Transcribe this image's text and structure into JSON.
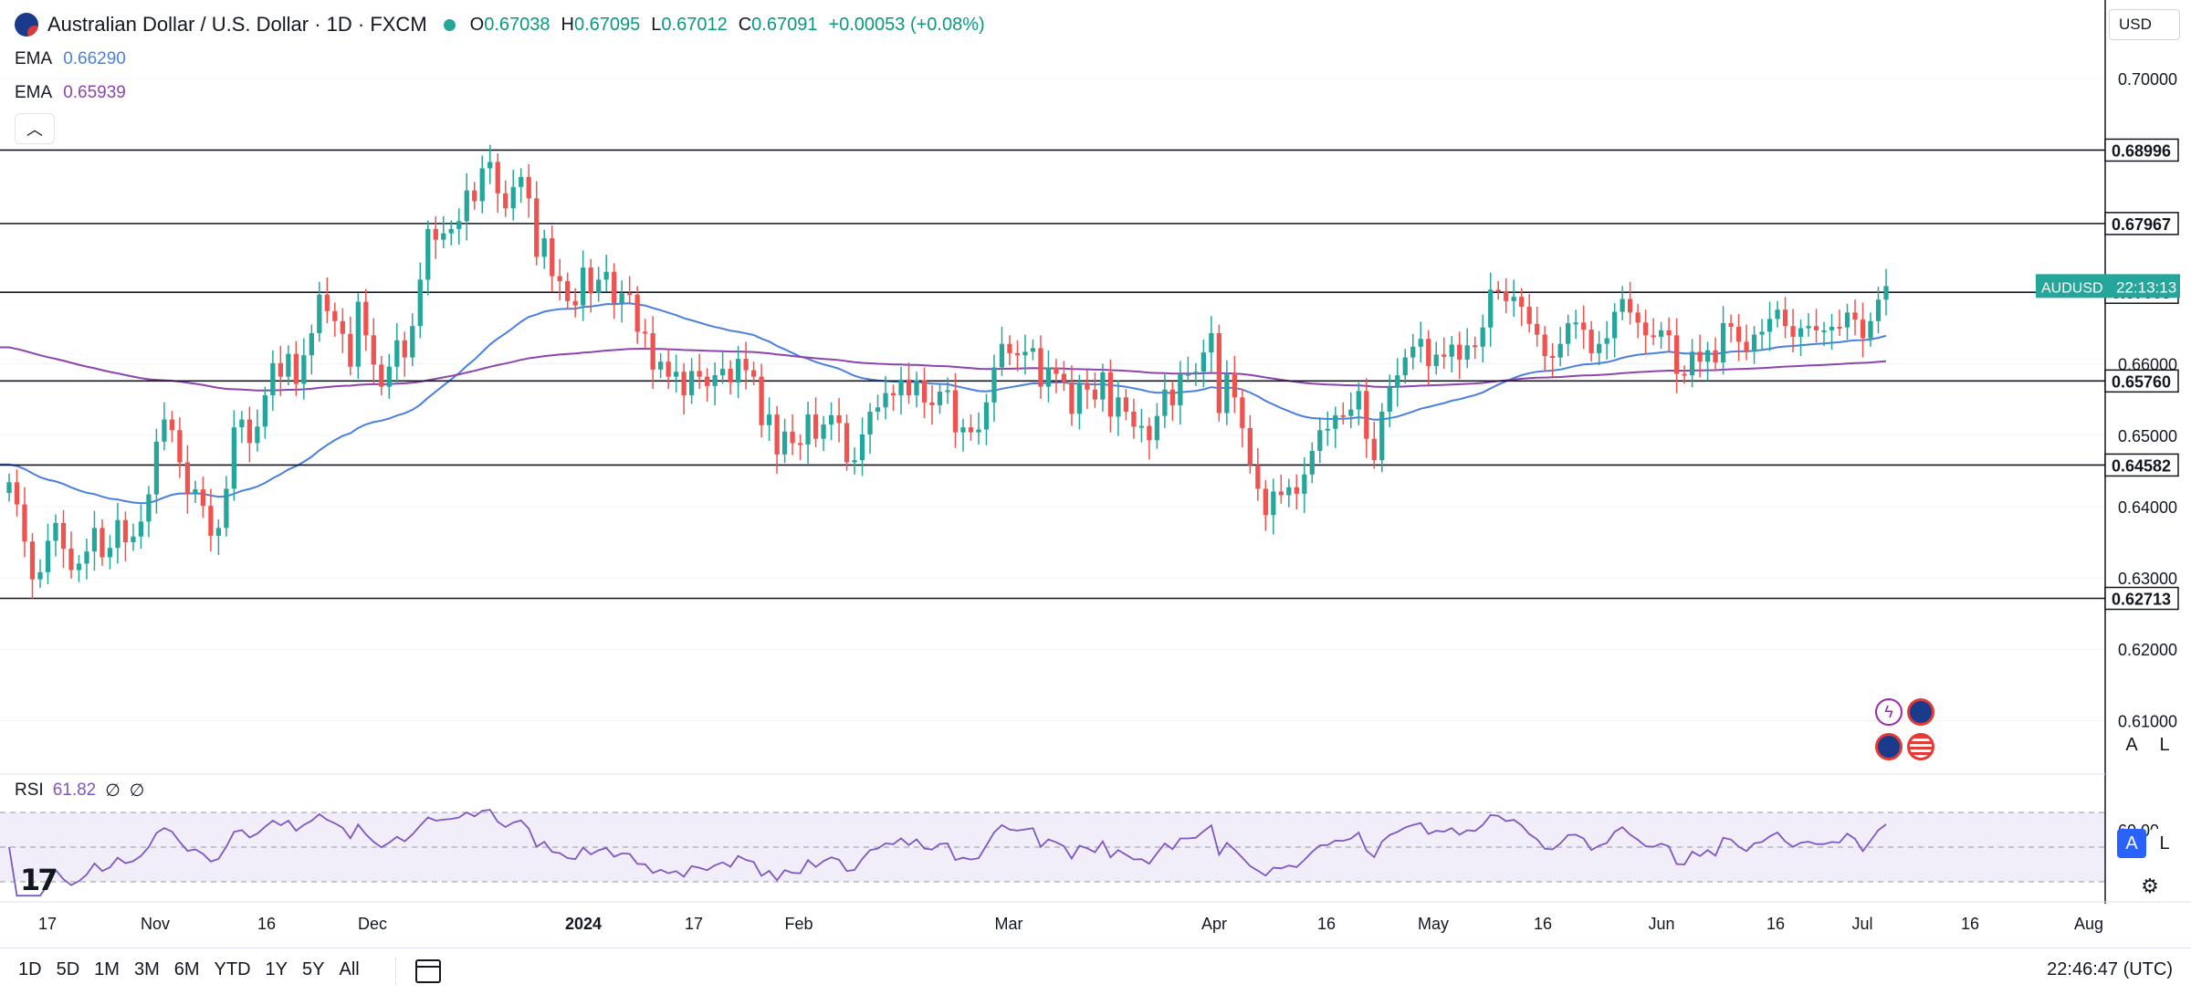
{
  "header": {
    "title": "Australian Dollar / U.S. Dollar · 1D · FXCM",
    "open_label": "O",
    "open": "0.67038",
    "high_label": "H",
    "high": "0.67095",
    "low_label": "L",
    "low": "0.67012",
    "close_label": "C",
    "close": "0.67091",
    "change": "+0.00053 (+0.08%)"
  },
  "indicators": [
    {
      "name": "EMA",
      "value": "0.66290",
      "color": "#4a7fe0"
    },
    {
      "name": "EMA",
      "value": "0.65939",
      "color": "#8e44ad"
    }
  ],
  "currency": "USD",
  "rsi": {
    "label": "RSI",
    "value": "61.82",
    "extra1": "∅",
    "extra2": "∅",
    "level_label": "60.00"
  },
  "price_axis": {
    "ticks": [
      "0.70000",
      "0.66000",
      "0.65000",
      "0.64000",
      "0.63000",
      "0.62000",
      "0.61000"
    ],
    "level_tags": [
      "0.68996",
      "0.67967",
      "0.67003",
      "0.65760",
      "0.64582",
      "0.62713"
    ],
    "symbol_tag": "AUDUSD",
    "countdown": "22:13:13"
  },
  "time_axis": [
    "17",
    "Nov",
    "16",
    "Dec",
    "2024",
    "17",
    "Feb",
    "Mar",
    "Apr",
    "16",
    "May",
    "16",
    "Jun",
    "16",
    "Jul",
    "16",
    "Aug"
  ],
  "scale_buttons": {
    "auto": "A",
    "log": "L"
  },
  "bottom_bar": {
    "ranges": [
      "1D",
      "5D",
      "1M",
      "3M",
      "6M",
      "YTD",
      "1Y",
      "5Y",
      "All"
    ],
    "clock": "22:46:47 (UTC)"
  },
  "colors": {
    "up": "#26a69a",
    "down": "#ef5350",
    "ema_fast": "#4a7fe0",
    "ema_slow": "#8e44ad",
    "rsi": "#7e57c2"
  },
  "chart_data": {
    "type": "candlestick",
    "symbol": "AUDUSD",
    "timeframe": "1D",
    "ylim": [
      0.6025,
      0.711
    ],
    "horizontal_levels": [
      0.68996,
      0.67967,
      0.67003,
      0.6576,
      0.64582,
      0.62713
    ],
    "candle_closes": [
      0.6434,
      0.6403,
      0.6351,
      0.6298,
      0.6308,
      0.6352,
      0.6377,
      0.6341,
      0.6311,
      0.632,
      0.6337,
      0.637,
      0.6329,
      0.6342,
      0.6381,
      0.635,
      0.6358,
      0.6379,
      0.6417,
      0.6491,
      0.6522,
      0.6507,
      0.6462,
      0.6417,
      0.6424,
      0.6401,
      0.6359,
      0.637,
      0.6425,
      0.6511,
      0.6522,
      0.6489,
      0.6512,
      0.6556,
      0.6601,
      0.6582,
      0.6614,
      0.6572,
      0.6612,
      0.6643,
      0.6697,
      0.6674,
      0.666,
      0.6642,
      0.6596,
      0.6687,
      0.664,
      0.6599,
      0.6568,
      0.6596,
      0.6633,
      0.6609,
      0.6653,
      0.6718,
      0.6789,
      0.6774,
      0.6783,
      0.6789,
      0.68,
      0.6843,
      0.6828,
      0.6874,
      0.6883,
      0.6839,
      0.6818,
      0.6848,
      0.6862,
      0.6832,
      0.675,
      0.6776,
      0.6723,
      0.6716,
      0.6688,
      0.6682,
      0.6735,
      0.6699,
      0.6718,
      0.6729,
      0.6685,
      0.6699,
      0.6697,
      0.6645,
      0.6643,
      0.6592,
      0.6603,
      0.6582,
      0.6589,
      0.6556,
      0.659,
      0.6582,
      0.6569,
      0.6584,
      0.6593,
      0.6574,
      0.6607,
      0.6591,
      0.6582,
      0.6514,
      0.6529,
      0.6473,
      0.6505,
      0.6489,
      0.6487,
      0.6529,
      0.6495,
      0.6515,
      0.6528,
      0.6517,
      0.6462,
      0.6465,
      0.6501,
      0.6533,
      0.6539,
      0.6559,
      0.6556,
      0.6578,
      0.6556,
      0.6577,
      0.6546,
      0.6542,
      0.6561,
      0.6563,
      0.6504,
      0.6511,
      0.6504,
      0.6508,
      0.6546,
      0.6595,
      0.6628,
      0.6615,
      0.6612,
      0.6617,
      0.6622,
      0.6568,
      0.6595,
      0.6586,
      0.6574,
      0.653,
      0.6573,
      0.6564,
      0.655,
      0.6588,
      0.6526,
      0.6553,
      0.6533,
      0.6512,
      0.6513,
      0.6493,
      0.6527,
      0.6564,
      0.6542,
      0.6586,
      0.6586,
      0.6589,
      0.6616,
      0.6643,
      0.6531,
      0.6587,
      0.6553,
      0.651,
      0.6458,
      0.6425,
      0.6388,
      0.6421,
      0.6416,
      0.6427,
      0.6418,
      0.6445,
      0.6478,
      0.6507,
      0.6509,
      0.6528,
      0.6527,
      0.6536,
      0.6562,
      0.6495,
      0.6465,
      0.6533,
      0.6567,
      0.6584,
      0.6609,
      0.6624,
      0.6635,
      0.6597,
      0.6613,
      0.661,
      0.6627,
      0.6606,
      0.6626,
      0.6624,
      0.6651,
      0.6704,
      0.6702,
      0.6688,
      0.6694,
      0.668,
      0.6656,
      0.6641,
      0.6611,
      0.6609,
      0.6628,
      0.6657,
      0.6658,
      0.6648,
      0.6615,
      0.6628,
      0.6636,
      0.6673,
      0.6691,
      0.6672,
      0.6658,
      0.664,
      0.6638,
      0.6647,
      0.664,
      0.6586,
      0.6584,
      0.6617,
      0.6603,
      0.6619,
      0.6602,
      0.6657,
      0.6652,
      0.6631,
      0.6617,
      0.6641,
      0.6645,
      0.6663,
      0.6676,
      0.6653,
      0.6638,
      0.665,
      0.6653,
      0.6647,
      0.6647,
      0.6652,
      0.6651,
      0.6672,
      0.6662,
      0.6636,
      0.666,
      0.669,
      0.6709
    ]
  }
}
